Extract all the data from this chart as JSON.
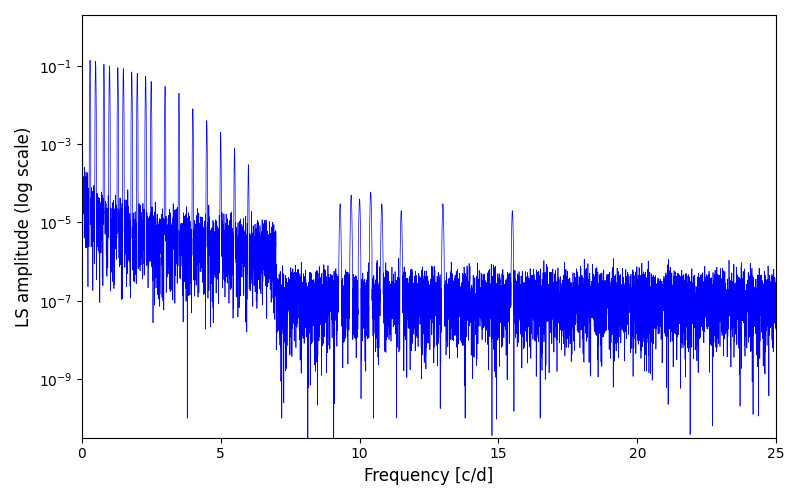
{
  "title": "",
  "xlabel": "Frequency [c/d]",
  "ylabel": "LS amplitude (log scale)",
  "xlim": [
    0,
    25
  ],
  "ylim_log": [
    -10.5,
    0.3
  ],
  "line_color": "#0000ff",
  "line_width": 0.5,
  "yscale": "log",
  "figsize": [
    8.0,
    5.0
  ],
  "dpi": 100,
  "background_color": "#ffffff",
  "seed": 42,
  "n_points": 8000
}
